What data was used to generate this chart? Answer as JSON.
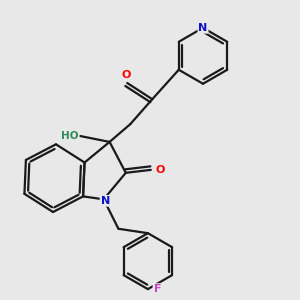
{
  "bg_color": "#e8e8e8",
  "bond_color": "#1a1a1a",
  "bond_width": 1.6,
  "figsize": [
    3.0,
    3.0
  ],
  "dpi": 100,
  "xlim": [
    0,
    10
  ],
  "ylim": [
    0,
    10
  ]
}
